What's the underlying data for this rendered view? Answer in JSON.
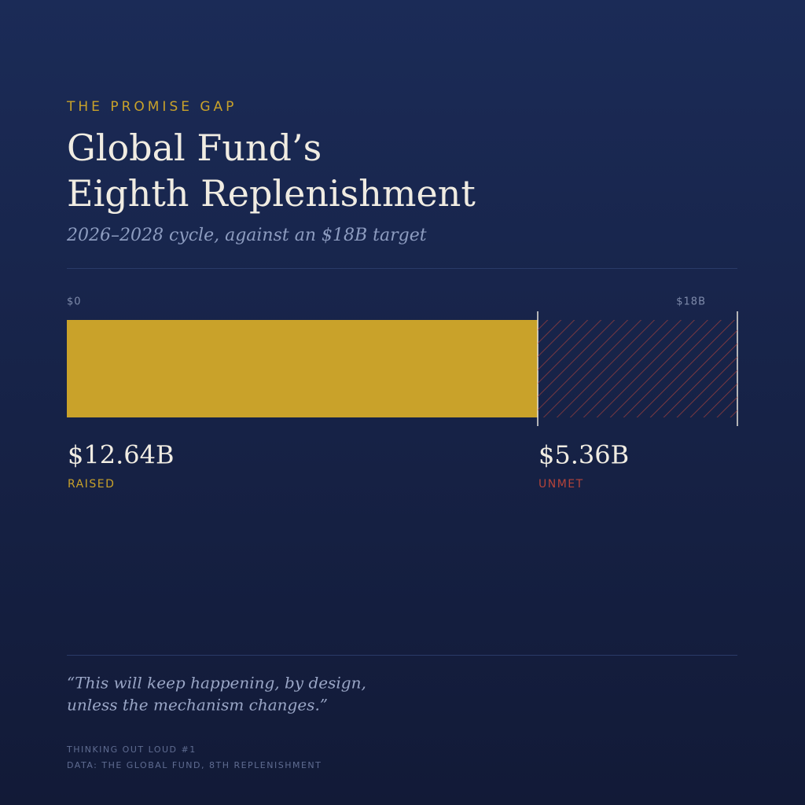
{
  "chart_data": {
    "type": "stacked-bar",
    "kicker": "THE PROMISE GAP",
    "title": [
      "Global Fund’s",
      "Eighth Replenishment"
    ],
    "subtitle": "2026–2028 cycle, against an $18B target",
    "xlim": [
      0,
      18
    ],
    "xticks": [
      {
        "value": 0,
        "label": "$0"
      },
      {
        "value": 18,
        "label": "$18B"
      }
    ],
    "series": [
      {
        "name": "RAISED",
        "color": "#c9a22a",
        "values": [
          12.64
        ],
        "value_labels": [
          "$12.64B"
        ],
        "fill": "solid"
      },
      {
        "name": "UNMET",
        "color": "#b5443a",
        "values": [
          5.36
        ],
        "value_labels": [
          "$5.36B"
        ],
        "fill": "hatch"
      }
    ],
    "quote": [
      "“This will keep happening, by design,",
      "unless the mechanism changes.”"
    ],
    "footer": [
      "THINKING OUT LOUD #1",
      "DATA: THE GLOBAL FUND, 8TH REPLENISHMENT"
    ]
  }
}
